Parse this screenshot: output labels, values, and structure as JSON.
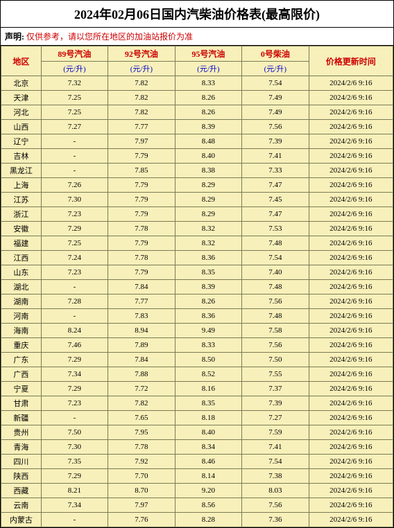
{
  "title": "2024年02月06日国内汽柴油价格表(最高限价)",
  "disclaimer_label": "声明:",
  "disclaimer_text": "仅供参考，请以您所在地区的加油站报价为准",
  "columns": {
    "region": "地区",
    "fuel89": "89号汽油",
    "fuel92": "92号汽油",
    "fuel95": "95号汽油",
    "diesel0": "0号柴油",
    "updated": "价格更新时间",
    "unit": "(元/升)"
  },
  "colors": {
    "header_bg": "#f8f0ba",
    "row_bg": "#f8f0ba",
    "border": "#7a7a55",
    "red_text": "#cc0000",
    "blue_text": "#0000cc"
  },
  "rows": [
    {
      "region": "北京",
      "p89": "7.32",
      "p92": "7.82",
      "p95": "8.33",
      "d0": "7.54",
      "ts": "2024/2/6 9:16"
    },
    {
      "region": "天津",
      "p89": "7.25",
      "p92": "7.82",
      "p95": "8.26",
      "d0": "7.49",
      "ts": "2024/2/6 9:16"
    },
    {
      "region": "河北",
      "p89": "7.25",
      "p92": "7.82",
      "p95": "8.26",
      "d0": "7.49",
      "ts": "2024/2/6 9:16"
    },
    {
      "region": "山西",
      "p89": "7.27",
      "p92": "7.77",
      "p95": "8.39",
      "d0": "7.56",
      "ts": "2024/2/6 9:16"
    },
    {
      "region": "辽宁",
      "p89": "-",
      "p92": "7.97",
      "p95": "8.48",
      "d0": "7.39",
      "ts": "2024/2/6 9:16"
    },
    {
      "region": "吉林",
      "p89": "-",
      "p92": "7.79",
      "p95": "8.40",
      "d0": "7.41",
      "ts": "2024/2/6 9:16"
    },
    {
      "region": "黑龙江",
      "p89": "-",
      "p92": "7.85",
      "p95": "8.38",
      "d0": "7.33",
      "ts": "2024/2/6 9:16"
    },
    {
      "region": "上海",
      "p89": "7.26",
      "p92": "7.79",
      "p95": "8.29",
      "d0": "7.47",
      "ts": "2024/2/6 9:16"
    },
    {
      "region": "江苏",
      "p89": "7.30",
      "p92": "7.79",
      "p95": "8.29",
      "d0": "7.45",
      "ts": "2024/2/6 9:16"
    },
    {
      "region": "浙江",
      "p89": "7.23",
      "p92": "7.79",
      "p95": "8.29",
      "d0": "7.47",
      "ts": "2024/2/6 9:16"
    },
    {
      "region": "安徽",
      "p89": "7.29",
      "p92": "7.78",
      "p95": "8.32",
      "d0": "7.53",
      "ts": "2024/2/6 9:16"
    },
    {
      "region": "福建",
      "p89": "7.25",
      "p92": "7.79",
      "p95": "8.32",
      "d0": "7.48",
      "ts": "2024/2/6 9:16"
    },
    {
      "region": "江西",
      "p89": "7.24",
      "p92": "7.78",
      "p95": "8.36",
      "d0": "7.54",
      "ts": "2024/2/6 9:16"
    },
    {
      "region": "山东",
      "p89": "7.23",
      "p92": "7.79",
      "p95": "8.35",
      "d0": "7.40",
      "ts": "2024/2/6 9:16"
    },
    {
      "region": "湖北",
      "p89": "-",
      "p92": "7.84",
      "p95": "8.39",
      "d0": "7.48",
      "ts": "2024/2/6 9:16"
    },
    {
      "region": "湖南",
      "p89": "7.28",
      "p92": "7.77",
      "p95": "8.26",
      "d0": "7.56",
      "ts": "2024/2/6 9:16"
    },
    {
      "region": "河南",
      "p89": "-",
      "p92": "7.83",
      "p95": "8.36",
      "d0": "7.48",
      "ts": "2024/2/6 9:16"
    },
    {
      "region": "海南",
      "p89": "8.24",
      "p92": "8.94",
      "p95": "9.49",
      "d0": "7.58",
      "ts": "2024/2/6 9:16"
    },
    {
      "region": "重庆",
      "p89": "7.46",
      "p92": "7.89",
      "p95": "8.33",
      "d0": "7.56",
      "ts": "2024/2/6 9:16"
    },
    {
      "region": "广东",
      "p89": "7.29",
      "p92": "7.84",
      "p95": "8.50",
      "d0": "7.50",
      "ts": "2024/2/6 9:16"
    },
    {
      "region": "广西",
      "p89": "7.34",
      "p92": "7.88",
      "p95": "8.52",
      "d0": "7.55",
      "ts": "2024/2/6 9:16"
    },
    {
      "region": "宁夏",
      "p89": "7.29",
      "p92": "7.72",
      "p95": "8.16",
      "d0": "7.37",
      "ts": "2024/2/6 9:16"
    },
    {
      "region": "甘肃",
      "p89": "7.23",
      "p92": "7.82",
      "p95": "8.35",
      "d0": "7.39",
      "ts": "2024/2/6 9:16"
    },
    {
      "region": "新疆",
      "p89": "-",
      "p92": "7.65",
      "p95": "8.18",
      "d0": "7.27",
      "ts": "2024/2/6 9:16"
    },
    {
      "region": "贵州",
      "p89": "7.50",
      "p92": "7.95",
      "p95": "8.40",
      "d0": "7.59",
      "ts": "2024/2/6 9:16"
    },
    {
      "region": "青海",
      "p89": "7.30",
      "p92": "7.78",
      "p95": "8.34",
      "d0": "7.41",
      "ts": "2024/2/6 9:16"
    },
    {
      "region": "四川",
      "p89": "7.35",
      "p92": "7.92",
      "p95": "8.46",
      "d0": "7.54",
      "ts": "2024/2/6 9:16"
    },
    {
      "region": "陕西",
      "p89": "7.29",
      "p92": "7.70",
      "p95": "8.14",
      "d0": "7.38",
      "ts": "2024/2/6 9:16"
    },
    {
      "region": "西藏",
      "p89": "8.21",
      "p92": "8.70",
      "p95": "9.20",
      "d0": "8.03",
      "ts": "2024/2/6 9:16"
    },
    {
      "region": "云南",
      "p89": "7.34",
      "p92": "7.97",
      "p95": "8.56",
      "d0": "7.56",
      "ts": "2024/2/6 9:16"
    },
    {
      "region": "内蒙古",
      "p89": "-",
      "p92": "7.76",
      "p95": "8.28",
      "d0": "7.36",
      "ts": "2024/2/6 9:16"
    }
  ]
}
